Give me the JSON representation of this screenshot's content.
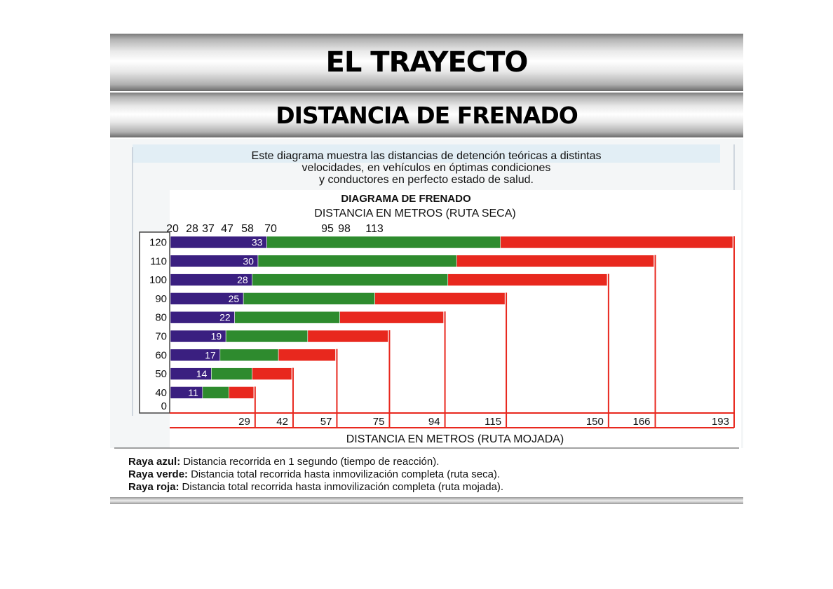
{
  "slide": {
    "title": "EL TRAYECTO",
    "subtitle": "DISTANCIA DE FRENADO"
  },
  "intro_lines": [
    "Este diagrama muestra las distancias de detención teóricas a distintas",
    "velocidades, en vehículos en óptimas condiciones",
    "y conductores en perfecto estado de salud."
  ],
  "chart_data": {
    "type": "bar",
    "title": "DIAGRAMA  DE  FRENADO",
    "dry_axis_label": "DISTANCIA  EN  METROS  (RUTA SECA)",
    "wet_axis_label": "DISTANCIA   EN   METROS   (RUTA  MOJADA)",
    "speeds": [
      120,
      110,
      100,
      90,
      80,
      70,
      60,
      50,
      40
    ],
    "zero_label": "0",
    "series": [
      {
        "name": "Raya azul",
        "values": [
          33,
          30,
          28,
          25,
          22,
          19,
          17,
          14,
          11
        ]
      },
      {
        "name": "Raya verde",
        "values": [
          113,
          98,
          95,
          70,
          58,
          47,
          37,
          28,
          20
        ]
      },
      {
        "name": "Raya roja",
        "values": [
          193,
          166,
          150,
          115,
          94,
          75,
          57,
          42,
          29
        ]
      }
    ],
    "dry_tick_labels": [
      "20",
      "28",
      "37",
      "47",
      "58",
      "70",
      "95",
      "98",
      "113"
    ],
    "wet_tick_labels": [
      "29",
      "42",
      "57",
      "75",
      "94",
      "115",
      "150",
      "166",
      "193"
    ],
    "colors": {
      "blue": "#3a1f80",
      "green": "#2e8b2e",
      "red": "#e8281e"
    }
  },
  "legend": [
    {
      "term": "Raya azul:",
      "text": "Distancia recorrida en 1 segundo (tiempo de reacción)."
    },
    {
      "term": "Raya verde:",
      "text": "Distancia total recorrida hasta inmovilización completa (ruta seca)."
    },
    {
      "term": "Raya roja:",
      "text": "Distancia total recorrida hasta inmovilización completa (ruta mojada)."
    }
  ]
}
